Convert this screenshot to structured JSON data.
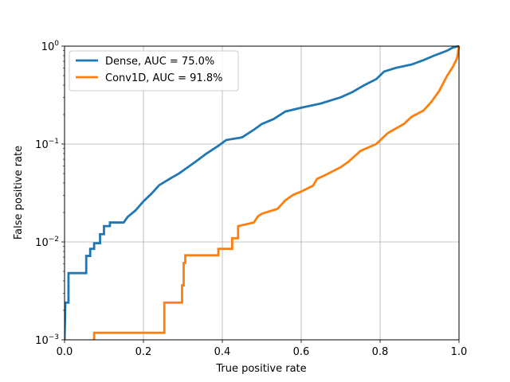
{
  "chart_data": {
    "type": "line",
    "xlabel": "True positive rate",
    "ylabel": "False positive rate",
    "xlim": [
      0,
      1
    ],
    "ylim": [
      0.001,
      1
    ],
    "yscale": "log",
    "grid": true,
    "legend_position": "top-left",
    "x_ticks": [
      0.0,
      0.2,
      0.4,
      0.6,
      0.8,
      1.0
    ],
    "x_tick_labels": [
      "0.0",
      "0.2",
      "0.4",
      "0.6",
      "0.8",
      "1.0"
    ],
    "y_ticks": [
      0.001,
      0.01,
      0.1,
      1
    ],
    "y_tick_labels": [
      {
        "base": "10",
        "exp": "−3"
      },
      {
        "base": "10",
        "exp": "−2"
      },
      {
        "base": "10",
        "exp": "−1"
      },
      {
        "base": "10",
        "exp": "0"
      }
    ],
    "series": [
      {
        "name": "Dense, AUC = 75.0%",
        "color": "#1f77b4",
        "points": [
          [
            0.0,
            0.001
          ],
          [
            0.002,
            0.0024
          ],
          [
            0.01,
            0.0024
          ],
          [
            0.01,
            0.0048
          ],
          [
            0.055,
            0.0048
          ],
          [
            0.055,
            0.0072
          ],
          [
            0.065,
            0.0072
          ],
          [
            0.065,
            0.0085
          ],
          [
            0.075,
            0.0085
          ],
          [
            0.075,
            0.0097
          ],
          [
            0.09,
            0.0097
          ],
          [
            0.09,
            0.012
          ],
          [
            0.1,
            0.012
          ],
          [
            0.1,
            0.0145
          ],
          [
            0.115,
            0.0145
          ],
          [
            0.115,
            0.0158
          ],
          [
            0.15,
            0.0158
          ],
          [
            0.16,
            0.018
          ],
          [
            0.18,
            0.021
          ],
          [
            0.2,
            0.026
          ],
          [
            0.22,
            0.031
          ],
          [
            0.24,
            0.038
          ],
          [
            0.27,
            0.045
          ],
          [
            0.29,
            0.05
          ],
          [
            0.31,
            0.057
          ],
          [
            0.33,
            0.065
          ],
          [
            0.36,
            0.08
          ],
          [
            0.39,
            0.096
          ],
          [
            0.41,
            0.11
          ],
          [
            0.45,
            0.117
          ],
          [
            0.48,
            0.14
          ],
          [
            0.5,
            0.16
          ],
          [
            0.53,
            0.18
          ],
          [
            0.56,
            0.215
          ],
          [
            0.6,
            0.235
          ],
          [
            0.65,
            0.26
          ],
          [
            0.7,
            0.3
          ],
          [
            0.73,
            0.34
          ],
          [
            0.76,
            0.4
          ],
          [
            0.79,
            0.46
          ],
          [
            0.81,
            0.55
          ],
          [
            0.84,
            0.6
          ],
          [
            0.88,
            0.65
          ],
          [
            0.91,
            0.72
          ],
          [
            0.94,
            0.81
          ],
          [
            0.97,
            0.9
          ],
          [
            0.985,
            0.97
          ],
          [
            1.0,
            1.0
          ]
        ]
      },
      {
        "name": "Conv1D, AUC = 91.8%",
        "color": "#ff7f0e",
        "points": [
          [
            0.075,
            0.001
          ],
          [
            0.075,
            0.00118
          ],
          [
            0.253,
            0.00118
          ],
          [
            0.253,
            0.0024
          ],
          [
            0.298,
            0.0024
          ],
          [
            0.298,
            0.0036
          ],
          [
            0.302,
            0.0036
          ],
          [
            0.302,
            0.0061
          ],
          [
            0.306,
            0.0061
          ],
          [
            0.306,
            0.0073
          ],
          [
            0.39,
            0.0073
          ],
          [
            0.39,
            0.0085
          ],
          [
            0.425,
            0.0085
          ],
          [
            0.425,
            0.0109
          ],
          [
            0.44,
            0.0109
          ],
          [
            0.44,
            0.0145
          ],
          [
            0.48,
            0.0158
          ],
          [
            0.49,
            0.0182
          ],
          [
            0.5,
            0.0194
          ],
          [
            0.54,
            0.0218
          ],
          [
            0.56,
            0.0267
          ],
          [
            0.58,
            0.0303
          ],
          [
            0.6,
            0.0327
          ],
          [
            0.63,
            0.0376
          ],
          [
            0.64,
            0.044
          ],
          [
            0.66,
            0.048
          ],
          [
            0.7,
            0.058
          ],
          [
            0.72,
            0.066
          ],
          [
            0.75,
            0.085
          ],
          [
            0.79,
            0.1
          ],
          [
            0.82,
            0.13
          ],
          [
            0.86,
            0.16
          ],
          [
            0.88,
            0.19
          ],
          [
            0.91,
            0.22
          ],
          [
            0.93,
            0.27
          ],
          [
            0.95,
            0.35
          ],
          [
            0.97,
            0.5
          ],
          [
            0.985,
            0.62
          ],
          [
            0.995,
            0.75
          ],
          [
            1.0,
            1.0
          ]
        ]
      }
    ]
  }
}
